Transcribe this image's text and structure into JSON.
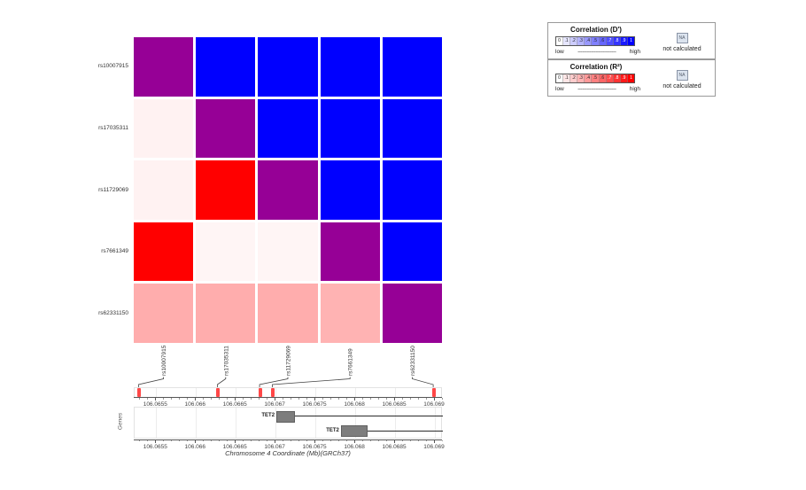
{
  "chart_data": {
    "type": "heatmap",
    "subtype": "linkage-disequilibrium-matrix",
    "upper_triangle_metric": "D'",
    "lower_triangle_metric": "R2",
    "snps": [
      "rs10007915",
      "rs17035311",
      "rs11729069",
      "rs7661349",
      "rs62331150"
    ],
    "snp_positions_mb": [
      106.06529,
      106.06628,
      106.06681,
      106.06697,
      106.06899
    ],
    "matrix": [
      [
        null,
        1.0,
        1.0,
        1.0,
        1.0
      ],
      [
        0.05,
        null,
        1.0,
        1.0,
        1.0
      ],
      [
        0.05,
        1.0,
        null,
        1.0,
        1.0
      ],
      [
        1.0,
        0.04,
        0.04,
        null,
        1.0
      ],
      [
        0.32,
        0.32,
        0.32,
        0.3,
        null
      ]
    ],
    "xlabel": "Chromosome 4 Coordinate (Mb)(GRCh37)",
    "genes_track_label": "Genes",
    "axis": {
      "min_mb": 106.06523,
      "max_mb": 106.0691,
      "minor_tick_step_mb": 0.0001,
      "minor_tick_start_mb": 106.0653,
      "minor_tick_count": 39,
      "major_ticks": [
        {
          "value": 106.0655,
          "label": "106.0655"
        },
        {
          "value": 106.066,
          "label": "106.066"
        },
        {
          "value": 106.0665,
          "label": "106.0665"
        },
        {
          "value": 106.067,
          "label": "106.067"
        },
        {
          "value": 106.0675,
          "label": "106.0675"
        },
        {
          "value": 106.068,
          "label": "106.068"
        },
        {
          "value": 106.0685,
          "label": "106.0685"
        },
        {
          "value": 106.069,
          "label": "106.069"
        }
      ]
    },
    "genes": [
      {
        "name": "TET2",
        "box_start_mb": 106.06701,
        "box_end_mb": 106.06722,
        "line_end_mb": 106.0691,
        "row": 0
      },
      {
        "name": "TET2",
        "box_start_mb": 106.06782,
        "box_end_mb": 106.06813,
        "line_end_mb": 106.0691,
        "row": 1
      }
    ]
  },
  "legend": {
    "dprime": {
      "title": "Correlation  (D')"
    },
    "r2": {
      "title": "Correlation  (R²)"
    },
    "scale_labels": [
      "0",
      ".1",
      ".2",
      ".3",
      ".4",
      ".5",
      ".6",
      ".7",
      ".8",
      ".9",
      "1"
    ],
    "scale_values": [
      0,
      0.1,
      0.2,
      0.3,
      0.4,
      0.5,
      0.6,
      0.7,
      0.8,
      0.9,
      1
    ],
    "low_label": "low",
    "high_label": "high",
    "dashes": "--------------------------",
    "na_label": "NA",
    "not_calculated_label": "not calculated"
  },
  "colors": {
    "diagonal": "#960096",
    "dprime_max": "#0000ff",
    "r2_max": "#ff0000",
    "snp_marker": "#ff4747",
    "gene_box": "#7d7d7d",
    "axis_line": "#555555",
    "connector_line": "#444444",
    "na_fill": "#dbe3ee"
  }
}
